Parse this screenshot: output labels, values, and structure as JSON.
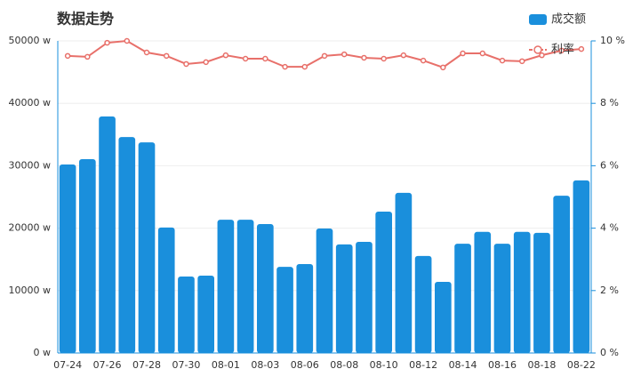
{
  "chart_data": {
    "type": "bar-line",
    "title": "数据走势",
    "legend": "top-right",
    "grid": true,
    "categories": [
      "07-24",
      null,
      "07-26",
      null,
      "07-28",
      null,
      "07-30",
      null,
      "08-01",
      null,
      "08-03",
      null,
      "08-06",
      null,
      "08-08",
      null,
      "08-10",
      null,
      "08-12",
      null,
      "08-14",
      null,
      "08-16",
      null,
      "08-18",
      null,
      "08-22"
    ],
    "series": [
      {
        "name": "成交额",
        "type": "bar",
        "color": "#1a8fdc",
        "values": [
          30200,
          31050,
          37900,
          34600,
          33750,
          20100,
          12250,
          12400,
          21350,
          21350,
          20650,
          13800,
          14250,
          19950,
          17400,
          17800,
          22650,
          25650,
          15550,
          11400,
          17500,
          19400,
          17500,
          19400,
          19250,
          25200,
          27650
        ]
      },
      {
        "name": "利率",
        "type": "line",
        "axis": "y2",
        "color": "#e8706a",
        "values": [
          9.52,
          9.49,
          9.94,
          10.0,
          9.63,
          9.52,
          9.26,
          9.32,
          9.54,
          9.43,
          9.43,
          9.17,
          9.17,
          9.52,
          9.57,
          9.46,
          9.43,
          9.54,
          9.37,
          9.15,
          9.6,
          9.6,
          9.37,
          9.35,
          9.54,
          9.69,
          9.74
        ]
      }
    ],
    "ylim": [
      0,
      50000
    ],
    "yticks": [
      {
        "value": 0,
        "label": "0 w"
      },
      {
        "value": 10000,
        "label": "10000 w"
      },
      {
        "value": 20000,
        "label": "20000 w"
      },
      {
        "value": 30000,
        "label": "30000 w"
      },
      {
        "value": 40000,
        "label": "40000 w"
      },
      {
        "value": 50000,
        "label": "50000 w"
      }
    ],
    "y2lim": [
      0,
      10
    ],
    "y2ticks": [
      {
        "value": 0,
        "label": "0 %"
      },
      {
        "value": 2,
        "label": "2 %"
      },
      {
        "value": 4,
        "label": "4 %"
      },
      {
        "value": 6,
        "label": "6 %"
      },
      {
        "value": 8,
        "label": "8 %"
      },
      {
        "value": 10,
        "label": "10 %"
      }
    ]
  }
}
